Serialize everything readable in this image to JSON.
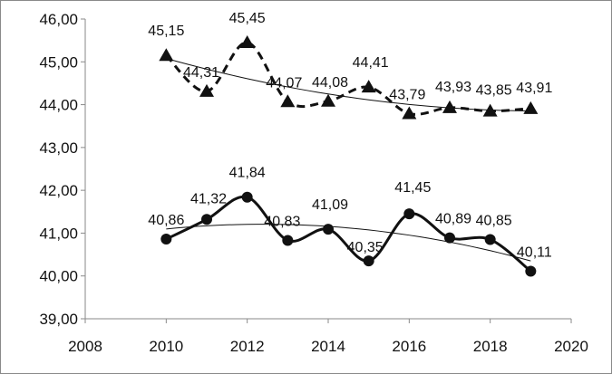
{
  "chart_data": {
    "type": "line",
    "title": "",
    "xlabel": "",
    "ylabel": "",
    "xlim": [
      2008,
      2020
    ],
    "ylim": [
      39,
      46
    ],
    "x_ticks": [
      "2008",
      "2010",
      "2012",
      "2014",
      "2016",
      "2018",
      "2020"
    ],
    "y_ticks": [
      "39,00",
      "40,00",
      "41,00",
      "42,00",
      "43,00",
      "44,00",
      "45,00",
      "46,00"
    ],
    "grid": false,
    "legend": "none",
    "x": [
      2010,
      2011,
      2012,
      2013,
      2014,
      2015,
      2016,
      2017,
      2018,
      2019
    ],
    "series": [
      {
        "marker": "triangle",
        "line_style": "dashed",
        "values": [
          45.15,
          44.31,
          45.45,
          44.07,
          44.08,
          44.41,
          43.79,
          43.93,
          43.85,
          43.91
        ],
        "labels": [
          "45,15",
          "44,31",
          "45,45",
          "44,07",
          "44,08",
          "44,41",
          "43,79",
          "43,93",
          "43,85",
          "43,91"
        ]
      },
      {
        "marker": "circle",
        "line_style": "solid",
        "values": [
          40.86,
          41.32,
          41.84,
          40.83,
          41.09,
          40.35,
          41.45,
          40.89,
          40.85,
          40.11
        ],
        "labels": [
          "40,86",
          "41,32",
          "41,84",
          "40,83",
          "41,09",
          "40,35",
          "41,45",
          "40,89",
          "40,85",
          "40,11"
        ]
      }
    ],
    "trendlines": [
      {
        "series_index": 0,
        "type": "polynomial"
      },
      {
        "series_index": 1,
        "type": "polynomial"
      }
    ],
    "colors": {
      "series": "#111111",
      "trend": "#111111",
      "axis": "#8a8a8a"
    }
  }
}
